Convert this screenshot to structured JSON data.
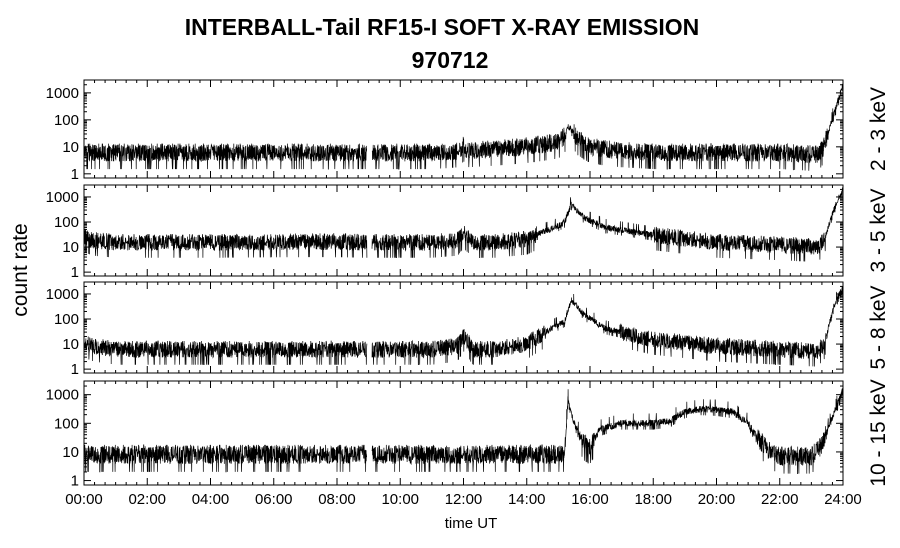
{
  "chart_data": {
    "type": "line",
    "title": "INTERBALL-Tail RF15-I SOFT X-RAY EMISSION",
    "subtitle": "970712",
    "xlabel": "time UT",
    "ylabel": "count rate",
    "xlim": [
      0,
      24
    ],
    "x_ticks": [
      "00:00",
      "02:00",
      "04:00",
      "06:00",
      "08:00",
      "10:00",
      "12:00",
      "14:00",
      "16:00",
      "18:00",
      "20:00",
      "22:00",
      "24:00"
    ],
    "yscale": "log",
    "ylim": [
      0.7,
      3000
    ],
    "y_ticks": [
      "1000",
      "100",
      "10",
      "1"
    ],
    "grid": false,
    "data_gap_hours": [
      8.95,
      9.1
    ],
    "panels": [
      {
        "name": "2 - 3 keV",
        "x": [
          0,
          2,
          4,
          6,
          8,
          8.95,
          9.1,
          11,
          11.9,
          12,
          12.1,
          13,
          14,
          14.5,
          15,
          15.2,
          15.3,
          15.4,
          15.6,
          16,
          16.5,
          17,
          18,
          20,
          22,
          23.2,
          23.4,
          23.7,
          24
        ],
        "y": [
          6,
          6,
          6,
          6,
          6,
          6,
          6,
          6,
          7,
          12,
          7,
          8,
          10,
          12,
          15,
          25,
          60,
          45,
          20,
          10,
          8,
          7,
          6,
          6,
          6,
          5,
          10,
          150,
          2000
        ]
      },
      {
        "name": "3 - 5 keV",
        "x": [
          0,
          0.3,
          1,
          4,
          7.5,
          8.95,
          9.1,
          11,
          11.8,
          12,
          12.3,
          13,
          14,
          14.5,
          14.9,
          15.2,
          15.4,
          15.8,
          16.5,
          18,
          20,
          22,
          23.2,
          23.4,
          23.7,
          24
        ],
        "y": [
          25,
          18,
          15,
          15,
          16,
          15,
          15,
          15,
          18,
          35,
          15,
          15,
          20,
          40,
          60,
          100,
          500,
          150,
          60,
          30,
          15,
          12,
          10,
          20,
          300,
          2000
        ]
      },
      {
        "name": "5 - 8 keV",
        "x": [
          0,
          0.3,
          1,
          4,
          7.5,
          8.95,
          9.1,
          11,
          11.8,
          12,
          12.3,
          13,
          14,
          14.5,
          14.9,
          15.2,
          15.4,
          15.8,
          16.5,
          18,
          20,
          22,
          23.2,
          23.4,
          23.7,
          24
        ],
        "y": [
          12,
          8,
          6,
          6,
          6,
          6,
          6,
          6,
          8,
          20,
          6,
          6,
          10,
          25,
          50,
          80,
          600,
          150,
          40,
          15,
          8,
          6,
          5,
          10,
          300,
          2000
        ]
      },
      {
        "name": "10 - 15 keV",
        "x": [
          0,
          4,
          8.95,
          9.1,
          12,
          14,
          15,
          15.2,
          15.3,
          15.5,
          15.8,
          16,
          16.3,
          17,
          18,
          18.5,
          19,
          19.5,
          20,
          20.5,
          21,
          21.3,
          21.7,
          22,
          23,
          23.3,
          23.7,
          24
        ],
        "y": [
          8,
          8,
          8,
          8,
          8,
          8,
          8,
          8,
          700,
          100,
          20,
          15,
          60,
          100,
          100,
          120,
          250,
          320,
          300,
          250,
          100,
          30,
          10,
          7,
          7,
          15,
          200,
          1500
        ]
      }
    ]
  }
}
